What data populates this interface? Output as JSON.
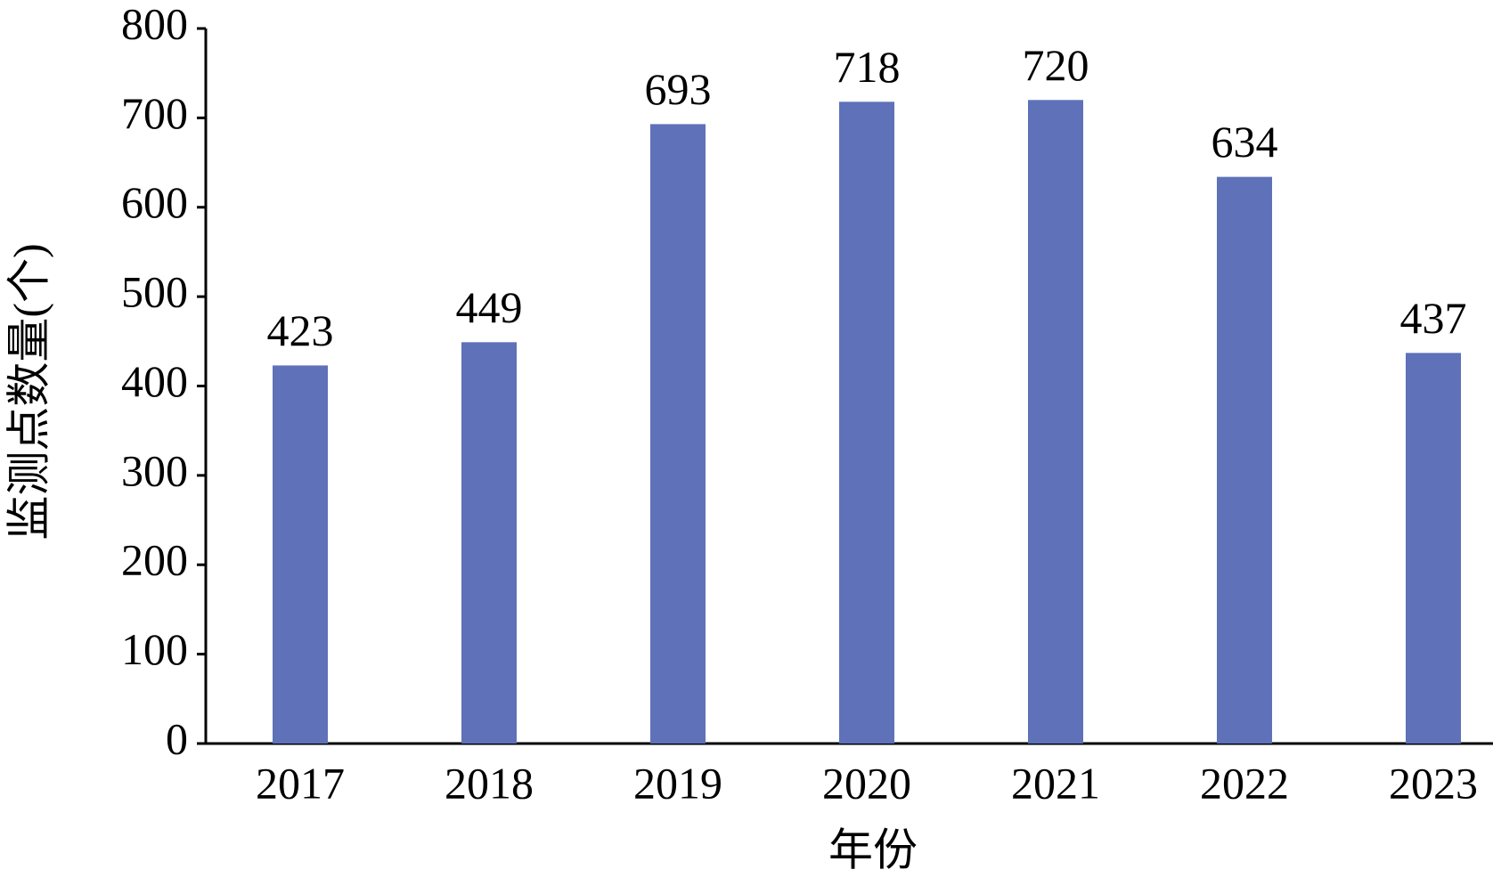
{
  "chart_data": {
    "type": "bar",
    "x_label": "年份",
    "y_label": "监测点数量(个)",
    "categories": [
      "2017",
      "2018",
      "2019",
      "2020",
      "2021",
      "2022",
      "2023"
    ],
    "values": [
      423,
      449,
      693,
      718,
      720,
      634,
      437
    ],
    "color": "#5e71b9",
    "ylim": [
      0,
      800
    ],
    "yticks": [
      0,
      100,
      200,
      300,
      400,
      500,
      600,
      700,
      800
    ]
  }
}
